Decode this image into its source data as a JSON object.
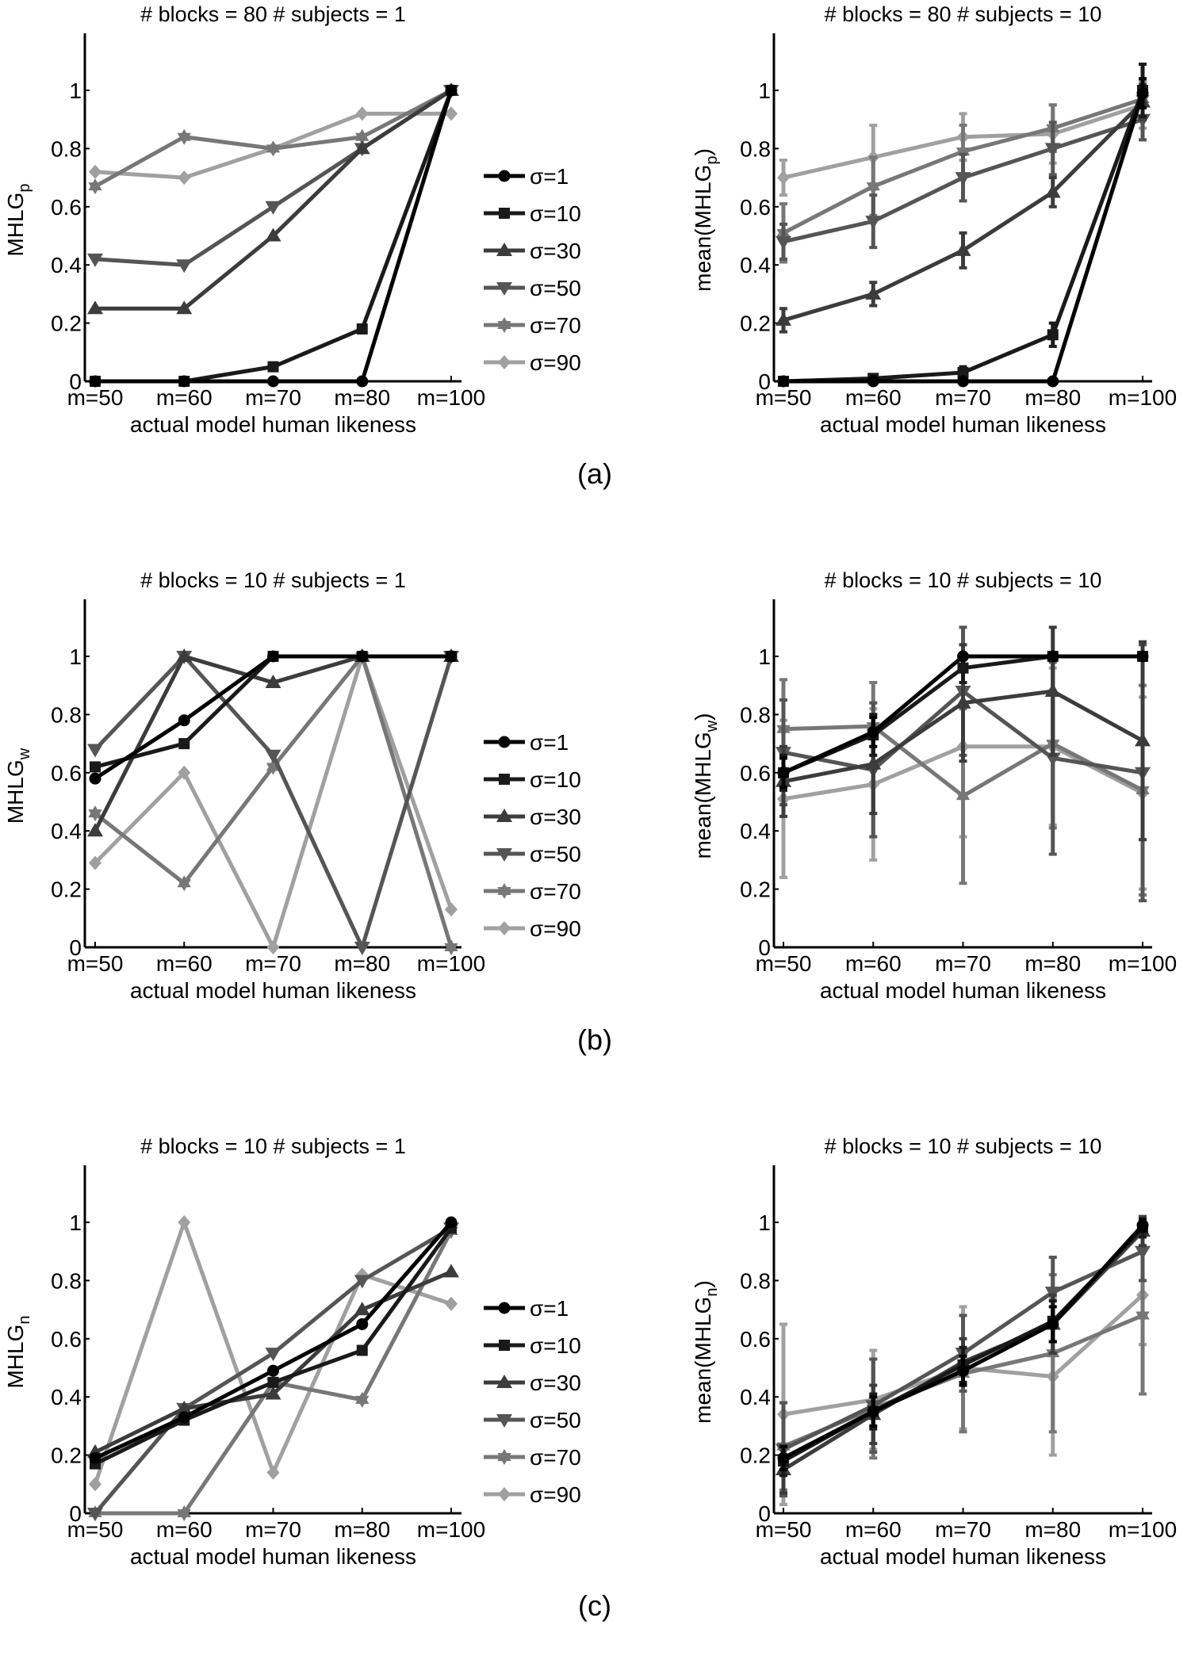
{
  "figure": {
    "panel_labels": [
      "(a)",
      "(b)",
      "(c)"
    ]
  },
  "legend": {
    "entries": [
      "σ=1",
      "σ=10",
      "σ=30",
      "σ=50",
      "σ=70",
      "σ=90"
    ]
  },
  "series_style": [
    {
      "name": "σ=1",
      "color": "#000000",
      "marker": "circle"
    },
    {
      "name": "σ=10",
      "color": "#1a1a1a",
      "marker": "square"
    },
    {
      "name": "σ=30",
      "color": "#3c3c3c",
      "marker": "triangle-up"
    },
    {
      "name": "σ=50",
      "color": "#555555",
      "marker": "triangle-down"
    },
    {
      "name": "σ=70",
      "color": "#777777",
      "marker": "hexagram"
    },
    {
      "name": "σ=90",
      "color": "#a0a0a0",
      "marker": "diamond"
    }
  ],
  "chart_data": [
    {
      "id": "a-left",
      "row": 0,
      "col": 0,
      "type": "line",
      "title": "# blocks = 80 # subjects = 1",
      "ylabel": "MHLG",
      "ylabel_sub": "p",
      "xlabel": "actual model human likeness",
      "categories": [
        "m=50",
        "m=60",
        "m=70",
        "m=80",
        "m=100"
      ],
      "yticks": [
        "0",
        "0.2",
        "0.4",
        "0.6",
        "0.8",
        "1"
      ],
      "ylim": [
        0,
        1.2
      ],
      "grid": false,
      "legend": "right-outside",
      "series": [
        {
          "name": "σ=1",
          "values": [
            0,
            0,
            0,
            0,
            1.0
          ]
        },
        {
          "name": "σ=10",
          "values": [
            0,
            0,
            0.05,
            0.18,
            1.0
          ]
        },
        {
          "name": "σ=30",
          "values": [
            0.25,
            0.25,
            0.5,
            0.8,
            1.0
          ]
        },
        {
          "name": "σ=50",
          "values": [
            0.42,
            0.4,
            0.6,
            0.8,
            1.0
          ]
        },
        {
          "name": "σ=70",
          "values": [
            0.67,
            0.84,
            0.8,
            0.84,
            1.0
          ]
        },
        {
          "name": "σ=90",
          "values": [
            0.72,
            0.7,
            0.8,
            0.92,
            0.92
          ]
        }
      ]
    },
    {
      "id": "a-right",
      "row": 0,
      "col": 1,
      "type": "line",
      "title": "# blocks = 80 # subjects = 10",
      "ylabel": "mean(MHLG",
      "ylabel_sub": "p",
      "ylabel_close": ")",
      "xlabel": "actual model human likeness",
      "categories": [
        "m=50",
        "m=60",
        "m=70",
        "m=80",
        "m=100"
      ],
      "yticks": [
        "0",
        "0.2",
        "0.4",
        "0.6",
        "0.8",
        "1"
      ],
      "ylim": [
        0,
        1.2
      ],
      "grid": false,
      "series": [
        {
          "name": "σ=1",
          "values": [
            0,
            0,
            0,
            0,
            0.99
          ],
          "err": [
            0,
            0,
            0,
            0,
            0.05
          ]
        },
        {
          "name": "σ=10",
          "values": [
            0,
            0.01,
            0.03,
            0.16,
            1.0
          ],
          "err": [
            0,
            0.01,
            0.02,
            0.04,
            0.09
          ]
        },
        {
          "name": "σ=30",
          "values": [
            0.21,
            0.3,
            0.45,
            0.65,
            0.96
          ],
          "err": [
            0.04,
            0.04,
            0.06,
            0.05,
            0.06
          ]
        },
        {
          "name": "σ=50",
          "values": [
            0.48,
            0.55,
            0.7,
            0.8,
            0.9
          ],
          "err": [
            0.06,
            0.09,
            0.08,
            0.09,
            0.07
          ]
        },
        {
          "name": "σ=70",
          "values": [
            0.51,
            0.67,
            0.79,
            0.87,
            0.97
          ],
          "err": [
            0.1,
            0.1,
            0.09,
            0.08,
            0.07
          ]
        },
        {
          "name": "σ=90",
          "values": [
            0.7,
            0.77,
            0.84,
            0.85,
            0.95
          ],
          "err": [
            0.06,
            0.11,
            0.08,
            0.1,
            0.08
          ]
        }
      ]
    },
    {
      "id": "b-left",
      "row": 1,
      "col": 0,
      "type": "line",
      "title": "# blocks = 10 # subjects = 1",
      "ylabel": "MHLG",
      "ylabel_sub": "w",
      "xlabel": "actual model human likeness",
      "categories": [
        "m=50",
        "m=60",
        "m=70",
        "m=80",
        "m=100"
      ],
      "yticks": [
        "0",
        "0.2",
        "0.4",
        "0.6",
        "0.8",
        "1"
      ],
      "ylim": [
        0,
        1.2
      ],
      "grid": false,
      "legend": "right-outside",
      "series": [
        {
          "name": "σ=1",
          "values": [
            0.58,
            0.78,
            1.0,
            1.0,
            1.0
          ]
        },
        {
          "name": "σ=10",
          "values": [
            0.62,
            0.7,
            1.0,
            1.0,
            1.0
          ]
        },
        {
          "name": "σ=30",
          "values": [
            0.4,
            1.0,
            0.91,
            1.0,
            1.0
          ]
        },
        {
          "name": "σ=50",
          "values": [
            0.68,
            1.0,
            0.66,
            0,
            1.0
          ]
        },
        {
          "name": "σ=70",
          "values": [
            0.46,
            0.22,
            0.62,
            1.0,
            0
          ]
        },
        {
          "name": "σ=90",
          "values": [
            0.29,
            0.6,
            0,
            1.0,
            0.13
          ]
        }
      ]
    },
    {
      "id": "b-right",
      "row": 1,
      "col": 1,
      "type": "line",
      "title": "# blocks = 10 # subjects = 10",
      "ylabel": "mean(MHLG",
      "ylabel_sub": "w",
      "ylabel_close": ")",
      "xlabel": "actual model human likeness",
      "categories": [
        "m=50",
        "m=60",
        "m=70",
        "m=80",
        "m=100"
      ],
      "yticks": [
        "0",
        "0.2",
        "0.4",
        "0.6",
        "0.8",
        "1"
      ],
      "ylim": [
        0,
        1.2
      ],
      "grid": false,
      "series": [
        {
          "name": "σ=1",
          "values": [
            0.6,
            0.74,
            1.0,
            1.0,
            1.0
          ],
          "err": [
            0.05,
            0.05,
            0.0,
            0.0,
            0.0
          ]
        },
        {
          "name": "σ=10",
          "values": [
            0.6,
            0.73,
            0.96,
            1.0,
            1.0
          ],
          "err": [
            0.06,
            0.07,
            0.05,
            0.0,
            0.0
          ]
        },
        {
          "name": "σ=30",
          "values": [
            0.57,
            0.63,
            0.84,
            0.88,
            0.71
          ],
          "err": [
            0.12,
            0.17,
            0.2,
            0.22,
            0.34
          ]
        },
        {
          "name": "σ=50",
          "values": [
            0.67,
            0.61,
            0.88,
            0.65,
            0.6
          ],
          "err": [
            0.18,
            0.23,
            0.22,
            0.33,
            0.44
          ]
        },
        {
          "name": "σ=70",
          "values": [
            0.75,
            0.76,
            0.52,
            0.7,
            0.54
          ],
          "err": [
            0.17,
            0.15,
            0.3,
            0.29,
            0.36
          ]
        },
        {
          "name": "σ=90",
          "values": [
            0.51,
            0.56,
            0.69,
            0.69,
            0.53
          ],
          "err": [
            0.27,
            0.26,
            0.31,
            0.27,
            0.33
          ]
        }
      ]
    },
    {
      "id": "c-left",
      "row": 2,
      "col": 0,
      "type": "line",
      "title": "# blocks = 10 # subjects = 1",
      "ylabel": "MHLG",
      "ylabel_sub": "n",
      "xlabel": "actual model human likeness",
      "categories": [
        "m=50",
        "m=60",
        "m=70",
        "m=80",
        "m=100"
      ],
      "yticks": [
        "0",
        "0.2",
        "0.4",
        "0.6",
        "0.8",
        "1"
      ],
      "ylim": [
        0,
        1.2
      ],
      "grid": false,
      "legend": "right-outside",
      "series": [
        {
          "name": "σ=1",
          "values": [
            0.19,
            0.33,
            0.49,
            0.65,
            1.0
          ]
        },
        {
          "name": "σ=10",
          "values": [
            0.17,
            0.32,
            0.45,
            0.56,
            0.98
          ]
        },
        {
          "name": "σ=30",
          "values": [
            0.21,
            0.36,
            0.41,
            0.7,
            0.83
          ]
        },
        {
          "name": "σ=50",
          "values": [
            0,
            0.36,
            0.55,
            0.8,
            0.98
          ]
        },
        {
          "name": "σ=70",
          "values": [
            0,
            0,
            0.45,
            0.39,
            0.97
          ]
        },
        {
          "name": "σ=90",
          "values": [
            0.1,
            1.0,
            0.14,
            0.82,
            0.72
          ]
        }
      ]
    },
    {
      "id": "c-right",
      "row": 2,
      "col": 1,
      "type": "line",
      "title": "# blocks = 10 # subjects = 10",
      "ylabel": "mean(MHLG",
      "ylabel_sub": "n",
      "ylabel_close": ")",
      "xlabel": "actual model human likeness",
      "categories": [
        "m=50",
        "m=60",
        "m=70",
        "m=80",
        "m=100"
      ],
      "yticks": [
        "0",
        "0.2",
        "0.4",
        "0.6",
        "0.8",
        "1"
      ],
      "ylim": [
        0,
        1.2
      ],
      "grid": false,
      "series": [
        {
          "name": "σ=1",
          "values": [
            0.19,
            0.35,
            0.49,
            0.65,
            0.99
          ],
          "err": [
            0.04,
            0.05,
            0.05,
            0.06,
            0.02
          ]
        },
        {
          "name": "σ=10",
          "values": [
            0.18,
            0.35,
            0.51,
            0.66,
            0.98
          ],
          "err": [
            0.05,
            0.06,
            0.06,
            0.07,
            0.03
          ]
        },
        {
          "name": "σ=30",
          "values": [
            0.15,
            0.34,
            0.52,
            0.65,
            0.97
          ],
          "err": [
            0.08,
            0.1,
            0.08,
            0.1,
            0.05
          ]
        },
        {
          "name": "σ=50",
          "values": [
            0.22,
            0.37,
            0.55,
            0.76,
            0.9
          ],
          "err": [
            0.16,
            0.16,
            0.13,
            0.12,
            0.1
          ]
        },
        {
          "name": "σ=70",
          "values": [
            0.23,
            0.36,
            0.48,
            0.55,
            0.68
          ],
          "err": [
            0.15,
            0.17,
            0.2,
            0.27,
            0.27
          ]
        },
        {
          "name": "σ=90",
          "values": [
            0.34,
            0.39,
            0.5,
            0.47,
            0.75
          ],
          "err": [
            0.31,
            0.17,
            0.21,
            0.27,
            0.17
          ]
        }
      ]
    }
  ]
}
